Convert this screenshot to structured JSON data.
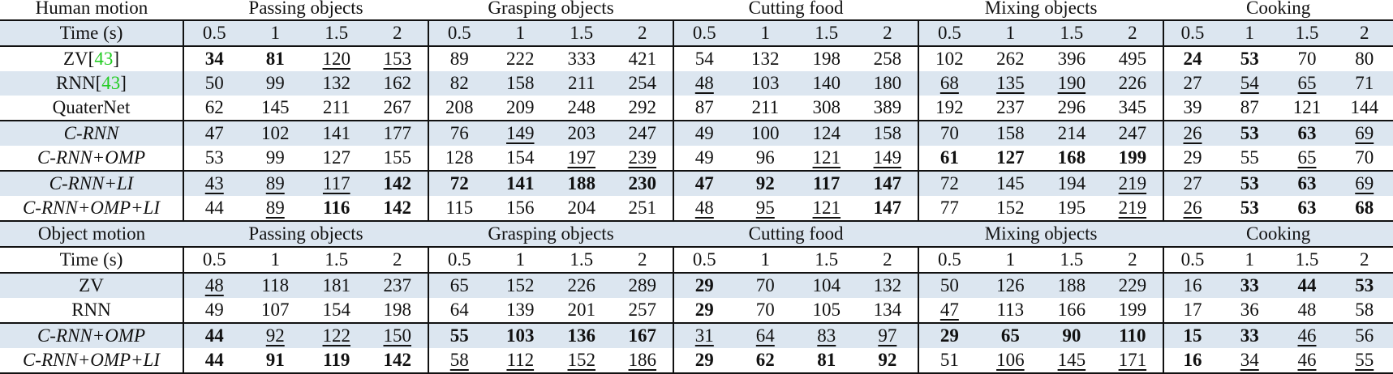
{
  "table": {
    "time_label": "Time (s)",
    "time_steps": [
      "0.5",
      "1",
      "1.5",
      "2"
    ],
    "groups": [
      "Passing objects",
      "Grasping objects",
      "Cutting food",
      "Mixing objects",
      "Cooking"
    ],
    "colors": {
      "row_shade": "#dce6f0",
      "citation": "#22cc22",
      "rule": "#111111"
    },
    "sections": [
      {
        "title": "Human motion",
        "rows": [
          {
            "method": "ZV",
            "cite": "43",
            "italic": false,
            "shade": false,
            "values": [
              "34",
              "81",
              "120",
              "153",
              "89",
              "222",
              "333",
              "421",
              "54",
              "132",
              "198",
              "258",
              "102",
              "262",
              "396",
              "495",
              "24",
              "53",
              "70",
              "80"
            ],
            "style": [
              "b",
              "b",
              "u",
              "u",
              "",
              "",
              "",
              "",
              "",
              "",
              "",
              "",
              "",
              "",
              "",
              "",
              "b",
              "b",
              "",
              ""
            ]
          },
          {
            "method": "RNN",
            "cite": "43",
            "italic": false,
            "shade": true,
            "values": [
              "50",
              "99",
              "132",
              "162",
              "82",
              "158",
              "211",
              "254",
              "48",
              "103",
              "140",
              "180",
              "68",
              "135",
              "190",
              "226",
              "27",
              "54",
              "65",
              "71"
            ],
            "style": [
              "",
              "",
              "",
              "",
              "",
              "",
              "",
              "",
              "u",
              "",
              "",
              "",
              "u",
              "u",
              "u",
              "",
              "",
              "u",
              "u",
              ""
            ]
          },
          {
            "method": "QuaterNet",
            "italic": false,
            "shade": false,
            "rule_after": true,
            "values": [
              "62",
              "145",
              "211",
              "267",
              "208",
              "209",
              "248",
              "292",
              "87",
              "211",
              "308",
              "389",
              "192",
              "237",
              "296",
              "345",
              "39",
              "87",
              "121",
              "144"
            ],
            "style": [
              "",
              "",
              "",
              "",
              "",
              "",
              "",
              "",
              "",
              "",
              "",
              "",
              "",
              "",
              "",
              "",
              "",
              "",
              "",
              ""
            ]
          },
          {
            "method": "C-RNN",
            "italic": true,
            "shade": true,
            "values": [
              "47",
              "102",
              "141",
              "177",
              "76",
              "149",
              "203",
              "247",
              "49",
              "100",
              "124",
              "158",
              "70",
              "158",
              "214",
              "247",
              "26",
              "53",
              "63",
              "69"
            ],
            "style": [
              "",
              "",
              "",
              "",
              "",
              "u",
              "",
              "",
              "",
              "",
              "",
              "",
              "",
              "",
              "",
              "",
              "u",
              "b",
              "b",
              "u"
            ]
          },
          {
            "method": "C-RNN+OMP",
            "italic": true,
            "shade": false,
            "rule_after": true,
            "values": [
              "53",
              "99",
              "127",
              "155",
              "128",
              "154",
              "197",
              "239",
              "49",
              "96",
              "121",
              "149",
              "61",
              "127",
              "168",
              "199",
              "29",
              "55",
              "65",
              "70"
            ],
            "style": [
              "",
              "",
              "",
              "",
              "",
              "",
              "u",
              "u",
              "",
              "",
              "u",
              "u",
              "b",
              "b",
              "b",
              "b",
              "",
              "",
              "u",
              ""
            ]
          },
          {
            "method": "C-RNN+LI",
            "italic": true,
            "shade": true,
            "values": [
              "43",
              "89",
              "117",
              "142",
              "72",
              "141",
              "188",
              "230",
              "47",
              "92",
              "117",
              "147",
              "72",
              "145",
              "194",
              "219",
              "27",
              "53",
              "63",
              "69"
            ],
            "style": [
              "u",
              "u",
              "u",
              "b",
              "b",
              "b",
              "b",
              "b",
              "b",
              "b",
              "b",
              "b",
              "",
              "",
              "",
              "u",
              "",
              "b",
              "b",
              "u"
            ]
          },
          {
            "method": "C-RNN+OMP+LI",
            "italic": true,
            "shade": false,
            "values": [
              "44",
              "89",
              "116",
              "142",
              "115",
              "156",
              "204",
              "251",
              "48",
              "95",
              "121",
              "147",
              "77",
              "152",
              "195",
              "219",
              "26",
              "53",
              "63",
              "68"
            ],
            "style": [
              "",
              "u",
              "b",
              "b",
              "",
              "",
              "",
              "",
              "u",
              "u",
              "u",
              "b",
              "",
              "",
              "",
              "u",
              "u",
              "b",
              "b",
              "b"
            ]
          }
        ]
      },
      {
        "title": "Object motion",
        "rows": [
          {
            "method": "ZV",
            "italic": false,
            "shade": true,
            "values": [
              "48",
              "118",
              "181",
              "237",
              "65",
              "152",
              "226",
              "289",
              "29",
              "70",
              "104",
              "132",
              "50",
              "126",
              "188",
              "229",
              "16",
              "33",
              "44",
              "53"
            ],
            "style": [
              "u",
              "",
              "",
              "",
              "",
              "",
              "",
              "",
              "b",
              "",
              "",
              "",
              "",
              "",
              "",
              "",
              "",
              "b",
              "b",
              "b"
            ]
          },
          {
            "method": "RNN",
            "italic": false,
            "shade": false,
            "rule_after": true,
            "values": [
              "49",
              "107",
              "154",
              "198",
              "64",
              "139",
              "201",
              "257",
              "29",
              "70",
              "105",
              "134",
              "47",
              "113",
              "166",
              "199",
              "17",
              "36",
              "48",
              "58"
            ],
            "style": [
              "",
              "",
              "",
              "",
              "",
              "",
              "",
              "",
              "b",
              "",
              "",
              "",
              "u",
              "",
              "",
              "",
              "",
              "",
              "",
              ""
            ]
          },
          {
            "method": "C-RNN+OMP",
            "italic": true,
            "shade": true,
            "values": [
              "44",
              "92",
              "122",
              "150",
              "55",
              "103",
              "136",
              "167",
              "31",
              "64",
              "83",
              "97",
              "29",
              "65",
              "90",
              "110",
              "15",
              "33",
              "46",
              "56"
            ],
            "style": [
              "b",
              "u",
              "u",
              "u",
              "b",
              "b",
              "b",
              "b",
              "u",
              "u",
              "u",
              "u",
              "b",
              "b",
              "b",
              "b",
              "b",
              "b",
              "u",
              ""
            ]
          },
          {
            "method": "C-RNN+OMP+LI",
            "italic": true,
            "shade": false,
            "values": [
              "44",
              "91",
              "119",
              "142",
              "58",
              "112",
              "152",
              "186",
              "29",
              "62",
              "81",
              "92",
              "51",
              "106",
              "145",
              "171",
              "16",
              "34",
              "46",
              "55"
            ],
            "style": [
              "b",
              "b",
              "b",
              "b",
              "u",
              "u",
              "u",
              "u",
              "b",
              "b",
              "b",
              "b",
              "",
              "u",
              "u",
              "u",
              "b",
              "u",
              "u",
              "u"
            ]
          }
        ]
      }
    ]
  }
}
